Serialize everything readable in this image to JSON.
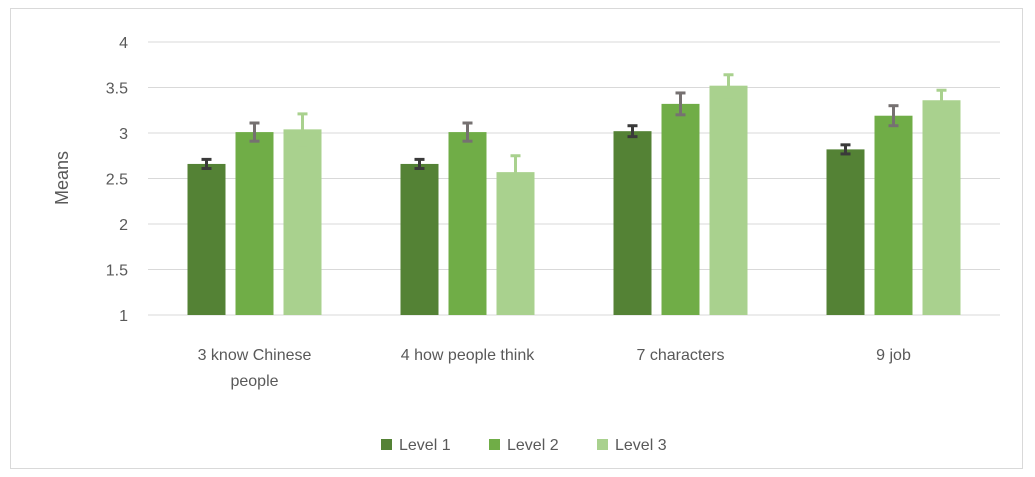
{
  "chart_data": {
    "type": "bar",
    "title": "",
    "xlabel": "",
    "ylabel": "Means",
    "ylim": [
      1,
      4
    ],
    "yticks": [
      "1",
      "1.5",
      "2",
      "2.5",
      "3",
      "3.5",
      "4"
    ],
    "grid": true,
    "legend_position": "bottom",
    "categories": [
      [
        "3 know Chinese",
        "people"
      ],
      [
        "4 how  people think"
      ],
      [
        "7 characters"
      ],
      [
        "9 job"
      ]
    ],
    "series": [
      {
        "name": "Level 1",
        "color": "#548235",
        "values": [
          2.66,
          2.66,
          3.02,
          2.82
        ],
        "errors": [
          0.05,
          0.05,
          0.06,
          0.05
        ],
        "error_color": "#3a3a3a"
      },
      {
        "name": "Level 2",
        "color": "#70ad47",
        "values": [
          3.01,
          3.01,
          3.32,
          3.19
        ],
        "errors": [
          0.1,
          0.1,
          0.12,
          0.11
        ],
        "error_color": "#767171"
      },
      {
        "name": "Level 3",
        "color": "#a9d18e",
        "values": [
          3.04,
          2.57,
          3.52,
          3.36
        ],
        "errors": [
          0.17,
          0.18,
          0.12,
          0.11
        ],
        "error_color": "#a9d18e"
      }
    ]
  }
}
